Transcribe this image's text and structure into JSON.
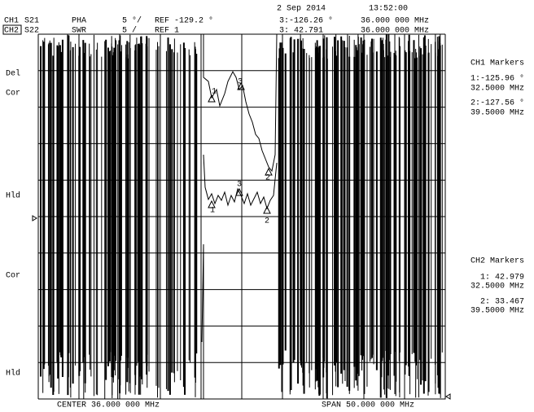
{
  "header": {
    "date": "2 Sep 2014",
    "time": "13:52:00"
  },
  "channels": [
    {
      "name": "CH1",
      "param": "S21",
      "format": "PHA",
      "scale": "5 °/",
      "ref": "REF -129.2 °",
      "marker": "3:-126.26 °",
      "marker_freq": "36.000 000 MHz"
    },
    {
      "name": "CH2",
      "param": "S22",
      "format": "SWR",
      "scale": "5 /",
      "ref": "REF 1",
      "marker": "3: 42.791",
      "marker_freq": "36.000 000 MHz"
    }
  ],
  "left_labels": [
    "Del",
    "Cor",
    "Hld",
    "Cor",
    "Hld"
  ],
  "markers": [
    {
      "title": "CH1 Markers",
      "entries": [
        {
          "value": "1:-125.96 °",
          "freq": "32.5000 MHz"
        },
        {
          "value": "2:-127.56 °",
          "freq": "39.5000 MHz"
        }
      ]
    },
    {
      "title": "CH2 Markers",
      "entries": [
        {
          "value": "1: 42.979",
          "freq": "32.5000 MHz"
        },
        {
          "value": "2: 33.467",
          "freq": "39.5000 MHz"
        }
      ]
    }
  ],
  "trace_marker_labels": [
    "1",
    "3",
    "2",
    "1",
    "3",
    "2"
  ],
  "footer": {
    "center": "CENTER 36.000 000 MHz",
    "span": "SPAN 50.000 000 MHz"
  }
}
